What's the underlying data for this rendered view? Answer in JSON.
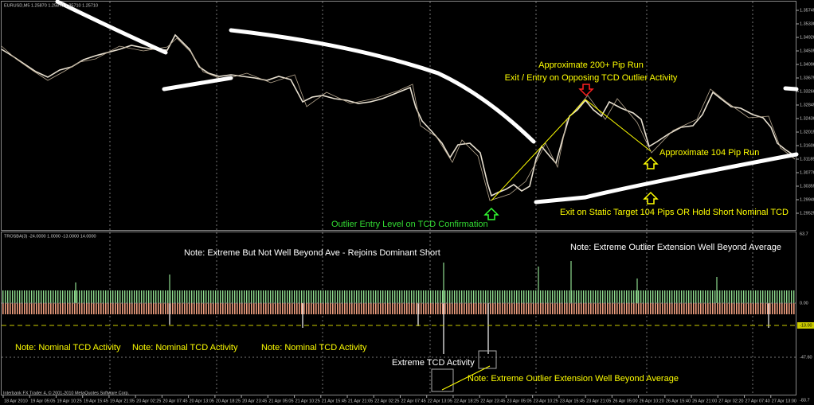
{
  "main_panel": {
    "header": "EURUSD,M5 1.25870 1.25870 1.25710 1.25710",
    "price_labels": [
      "1.35745",
      "1.35330",
      "1.34920",
      "1.34505",
      "1.34090",
      "1.33675",
      "1.33260",
      "1.32845",
      "1.32430",
      "1.32015",
      "1.31600",
      "1.31185",
      "1.30770",
      "1.30355",
      "1.29940",
      "1.29525"
    ]
  },
  "indicator_panel": {
    "header": "TROSBA(3) -24.0000 1.0000 -13.0000 14.0000",
    "scale_labels": [
      "63.7",
      "0.00",
      "-13.00",
      "-47.60",
      "-83.7"
    ]
  },
  "time_labels": [
    "18 Apr 2010",
    "19 Apr 05:05",
    "19 Apr 10:25",
    "19 Apr 15:45",
    "19 Apr 21:05",
    "20 Apr 02:25",
    "20 Apr 07:45",
    "20 Apr 13:05",
    "20 Apr 18:25",
    "20 Apr 23:45",
    "21 Apr 05:05",
    "21 Apr 10:25",
    "21 Apr 15:45",
    "21 Apr 21:05",
    "22 Apr 02:25",
    "22 Apr 07:45",
    "22 Apr 13:05",
    "22 Apr 18:25",
    "22 Apr 23:45",
    "23 Apr 05:05",
    "23 Apr 10:25",
    "23 Apr 15:45",
    "23 Apr 21:05",
    "26 Apr 05:00",
    "26 Apr 10:20",
    "26 Apr 15:40",
    "26 Apr 21:00",
    "27 Apr 02:20",
    "27 Apr 07:40",
    "27 Apr 13:00"
  ],
  "annotations": {
    "pip_run_200": "Approximate 200+ Pip Run",
    "exit_entry": "Exit / Entry on Opposing TCD Outlier Activity",
    "pip_run_104": "Approximate 104 Pip Run",
    "exit_static": "Exit on Static Target 104 Pips OR Hold Short Nominal TCD",
    "entry_level": "Outlier Entry Level on TCD Confirmation",
    "note_rejoins": "Note: Extreme But Not Well Beyond Ave - Rejoins Dominant Short",
    "note_extension_top": "Note: Extreme Outlier Extension Well Beyond Average",
    "note_nominal": [
      "Note: Nominal TCD Activity",
      "Note: Nominal TCD Activity",
      "Note: Nominal TCD Activity"
    ],
    "extreme_tcd": "Extreme TCD Activity",
    "note_extension_bottom": "Note: Extreme Outlier Extension Well Beyond Average"
  },
  "footer": "Interbank FX Trader 4, © 2001-2010 MetaQuotes Software Corp."
}
